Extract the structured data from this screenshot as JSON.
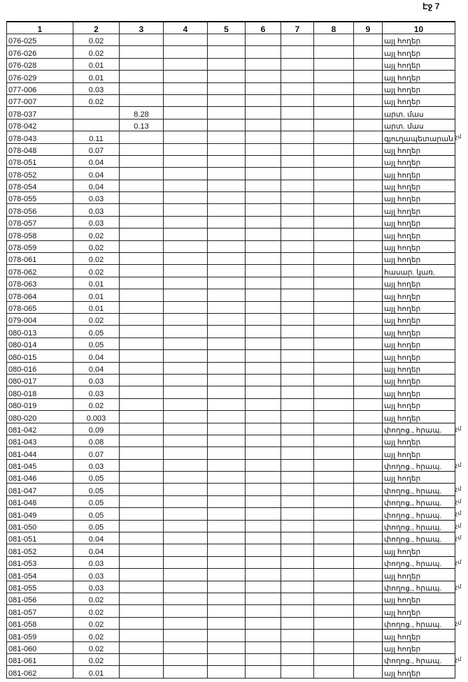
{
  "page_label": "Էջ 7",
  "headers": [
    "1",
    "2",
    "3",
    "4",
    "5",
    "6",
    "7",
    "8",
    "9",
    "10"
  ],
  "margin_mark": "չմ",
  "rows": [
    {
      "id": "076-025",
      "c2": "0.02",
      "c3": "",
      "c10": "այլ հողեր",
      "mark": false
    },
    {
      "id": "076-026",
      "c2": "0.02",
      "c3": "",
      "c10": "այլ հողեր",
      "mark": false
    },
    {
      "id": "076-028",
      "c2": "0.01",
      "c3": "",
      "c10": "այլ հողեր",
      "mark": false
    },
    {
      "id": "076-029",
      "c2": "0.01",
      "c3": "",
      "c10": "այլ հողեր",
      "mark": false
    },
    {
      "id": "077-006",
      "c2": "0.03",
      "c3": "",
      "c10": "այլ հողեր",
      "mark": false
    },
    {
      "id": "077-007",
      "c2": "0.02",
      "c3": "",
      "c10": "այլ հողեր",
      "mark": false
    },
    {
      "id": "078-037",
      "c2": "",
      "c3": "8.28",
      "c10": "արտ. մաս",
      "mark": false
    },
    {
      "id": "078-042",
      "c2": "",
      "c3": "0.13",
      "c10": "արտ. մաս",
      "mark": false
    },
    {
      "id": "078-043",
      "c2": "0.11",
      "c3": "",
      "c10": "գյուղապետարան",
      "mark": true
    },
    {
      "id": "078-048",
      "c2": "0.07",
      "c3": "",
      "c10": "այլ հողեր",
      "mark": false
    },
    {
      "id": "078-051",
      "c2": "0.04",
      "c3": "",
      "c10": "այլ հողեր",
      "mark": false
    },
    {
      "id": "078-052",
      "c2": "0.04",
      "c3": "",
      "c10": "այլ հողեր",
      "mark": false
    },
    {
      "id": "078-054",
      "c2": "0.04",
      "c3": "",
      "c10": "այլ հողեր",
      "mark": false
    },
    {
      "id": "078-055",
      "c2": "0.03",
      "c3": "",
      "c10": "այլ հողեր",
      "mark": false
    },
    {
      "id": "078-056",
      "c2": "0.03",
      "c3": "",
      "c10": "այլ հողեր",
      "mark": false
    },
    {
      "id": "078-057",
      "c2": "0.03",
      "c3": "",
      "c10": "այլ հողեր",
      "mark": false
    },
    {
      "id": "078-058",
      "c2": "0.02",
      "c3": "",
      "c10": "այլ հողեր",
      "mark": false
    },
    {
      "id": "078-059",
      "c2": "0.02",
      "c3": "",
      "c10": "այլ հողեր",
      "mark": false
    },
    {
      "id": "078-061",
      "c2": "0.02",
      "c3": "",
      "c10": "այլ հողեր",
      "mark": false
    },
    {
      "id": "078-062",
      "c2": "0.02",
      "c3": "",
      "c10": "հասար. կառ.",
      "mark": false
    },
    {
      "id": "078-063",
      "c2": "0.01",
      "c3": "",
      "c10": "այլ հողեր",
      "mark": false
    },
    {
      "id": "078-064",
      "c2": "0.01",
      "c3": "",
      "c10": "այլ հողեր",
      "mark": false
    },
    {
      "id": "078-065",
      "c2": "0.01",
      "c3": "",
      "c10": "այլ հողեր",
      "mark": false
    },
    {
      "id": "079-004",
      "c2": "0.02",
      "c3": "",
      "c10": "այլ հողեր",
      "mark": false
    },
    {
      "id": "080-013",
      "c2": "0.05",
      "c3": "",
      "c10": "այլ հողեր",
      "mark": false
    },
    {
      "id": "080-014",
      "c2": "0.05",
      "c3": "",
      "c10": "այլ հողեր",
      "mark": false
    },
    {
      "id": "080-015",
      "c2": "0.04",
      "c3": "",
      "c10": "այլ հողեր",
      "mark": false
    },
    {
      "id": "080-016",
      "c2": "0.04",
      "c3": "",
      "c10": "այլ հողեր",
      "mark": false
    },
    {
      "id": "080-017",
      "c2": "0.03",
      "c3": "",
      "c10": "այլ հողեր",
      "mark": false
    },
    {
      "id": "080-018",
      "c2": "0.03",
      "c3": "",
      "c10": "այլ հողեր",
      "mark": false
    },
    {
      "id": "080-019",
      "c2": "0.02",
      "c3": "",
      "c10": "այլ հողեր",
      "mark": false
    },
    {
      "id": "080-020",
      "c2": "0.003",
      "c3": "",
      "c10": "այլ հողեր",
      "mark": false
    },
    {
      "id": "081-042",
      "c2": "0.09",
      "c3": "",
      "c10": "փողոց., հրապ.",
      "mark": true
    },
    {
      "id": "081-043",
      "c2": "0.08",
      "c3": "",
      "c10": "այլ հողեր",
      "mark": false
    },
    {
      "id": "081-044",
      "c2": "0.07",
      "c3": "",
      "c10": "այլ հողեր",
      "mark": false
    },
    {
      "id": "081-045",
      "c2": "0.03",
      "c3": "",
      "c10": "փողոց., հրապ.",
      "mark": true
    },
    {
      "id": "081-046",
      "c2": "0.05",
      "c3": "",
      "c10": "այլ հողեր",
      "mark": false
    },
    {
      "id": "081-047",
      "c2": "0.05",
      "c3": "",
      "c10": "փողոց., հրապ.",
      "mark": true
    },
    {
      "id": "081-048",
      "c2": "0.05",
      "c3": "",
      "c10": "փողոց., հրապ.",
      "mark": true
    },
    {
      "id": "081-049",
      "c2": "0.05",
      "c3": "",
      "c10": "փողոց., հրապ.",
      "mark": true
    },
    {
      "id": "081-050",
      "c2": "0.05",
      "c3": "",
      "c10": "փողոց., հրապ.",
      "mark": true
    },
    {
      "id": "081-051",
      "c2": "0.04",
      "c3": "",
      "c10": "փողոց., հրապ.",
      "mark": true
    },
    {
      "id": "081-052",
      "c2": "0.04",
      "c3": "",
      "c10": "այլ հողեր",
      "mark": false
    },
    {
      "id": "081-053",
      "c2": "0.03",
      "c3": "",
      "c10": "փողոց., հրապ.",
      "mark": true
    },
    {
      "id": "081-054",
      "c2": "0.03",
      "c3": "",
      "c10": "այլ հողեր",
      "mark": false
    },
    {
      "id": "081-055",
      "c2": "0.03",
      "c3": "",
      "c10": "փողոց., հրապ.",
      "mark": true
    },
    {
      "id": "081-056",
      "c2": "0.02",
      "c3": "",
      "c10": "այլ հողեր",
      "mark": false
    },
    {
      "id": "081-057",
      "c2": "0.02",
      "c3": "",
      "c10": "այլ հողեր",
      "mark": false
    },
    {
      "id": "081-058",
      "c2": "0.02",
      "c3": "",
      "c10": "փողոց., հրապ.",
      "mark": true
    },
    {
      "id": "081-059",
      "c2": "0.02",
      "c3": "",
      "c10": "այլ հողեր",
      "mark": false
    },
    {
      "id": "081-060",
      "c2": "0.02",
      "c3": "",
      "c10": "այլ հողեր",
      "mark": false
    },
    {
      "id": "081-061",
      "c2": "0.02",
      "c3": "",
      "c10": "փողոց., հրապ.",
      "mark": true
    },
    {
      "id": "081-062",
      "c2": "0.01",
      "c3": "",
      "c10": "այլ հողեր",
      "mark": false
    }
  ]
}
